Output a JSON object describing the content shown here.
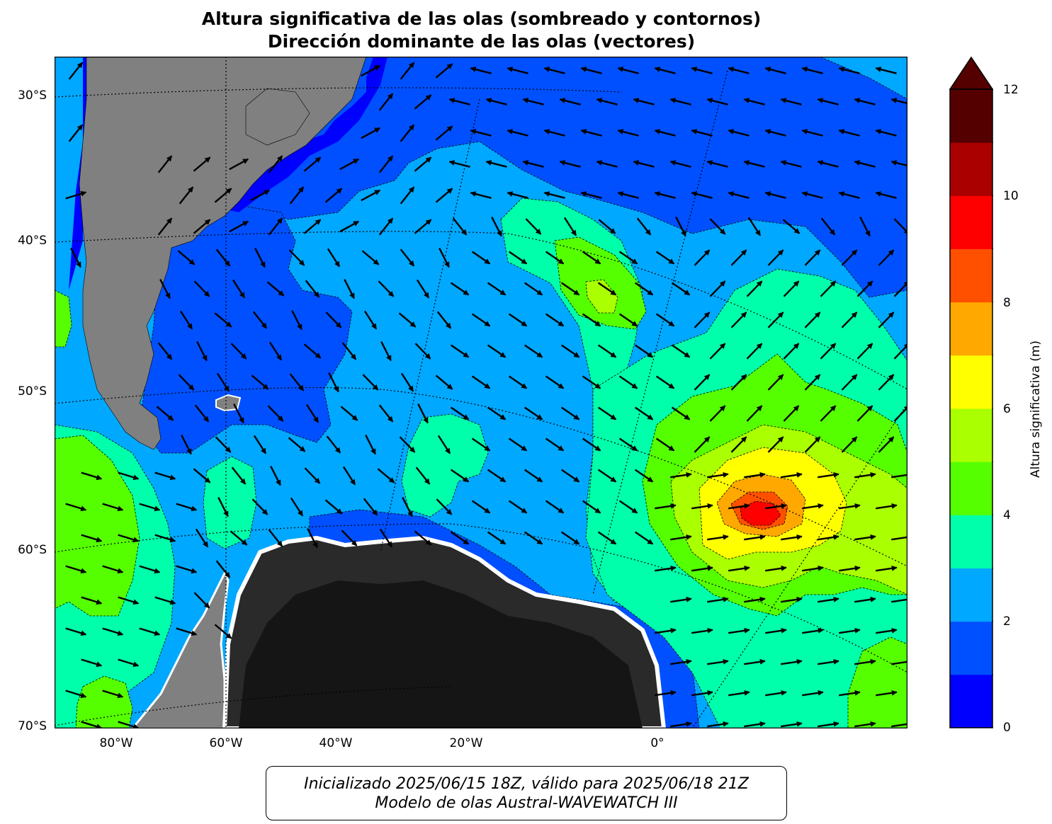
{
  "title": {
    "line1": "Altura significativa de las olas (sombreado y contornos)",
    "line2": "Dirección dominante de las olas (vectores)"
  },
  "map": {
    "lat_labels": [
      "30°S",
      "40°S",
      "50°S",
      "60°S",
      "70°S"
    ],
    "lon_labels": [
      "80°W",
      "60°W",
      "40°W",
      "20°W",
      "0°"
    ],
    "colors": {
      "ocean_0_1": "#0000ff",
      "ocean_1_2": "#0050ff",
      "ocean_2_3": "#00a8ff",
      "ocean_3_4": "#00ffaa",
      "ocean_4_5": "#55ff00",
      "ocean_5_6": "#aaff00",
      "ocean_6_7": "#ffff00",
      "ocean_7_8": "#ffa800",
      "ocean_8_9": "#ff5000",
      "ocean_9_10": "#ff0000",
      "land": "#808080",
      "antarctica": "#2a2a2a"
    }
  },
  "colorbar": {
    "ticks": [
      "0",
      "2",
      "4",
      "6",
      "8",
      "10",
      "12"
    ],
    "label": "Altura significativa (m)",
    "range": [
      0,
      12
    ],
    "colors": [
      "#0000ff",
      "#0050ff",
      "#00a8ff",
      "#00ffaa",
      "#55ff00",
      "#aaff00",
      "#ffff00",
      "#ffa800",
      "#ff5000",
      "#ff0000",
      "#aa0000",
      "#550000"
    ]
  },
  "footer": {
    "line1": "Inicializado 2025/06/15 18Z, válido para 2025/06/18 21Z",
    "line2": "Modelo de olas Austral-WAVEWATCH III"
  }
}
